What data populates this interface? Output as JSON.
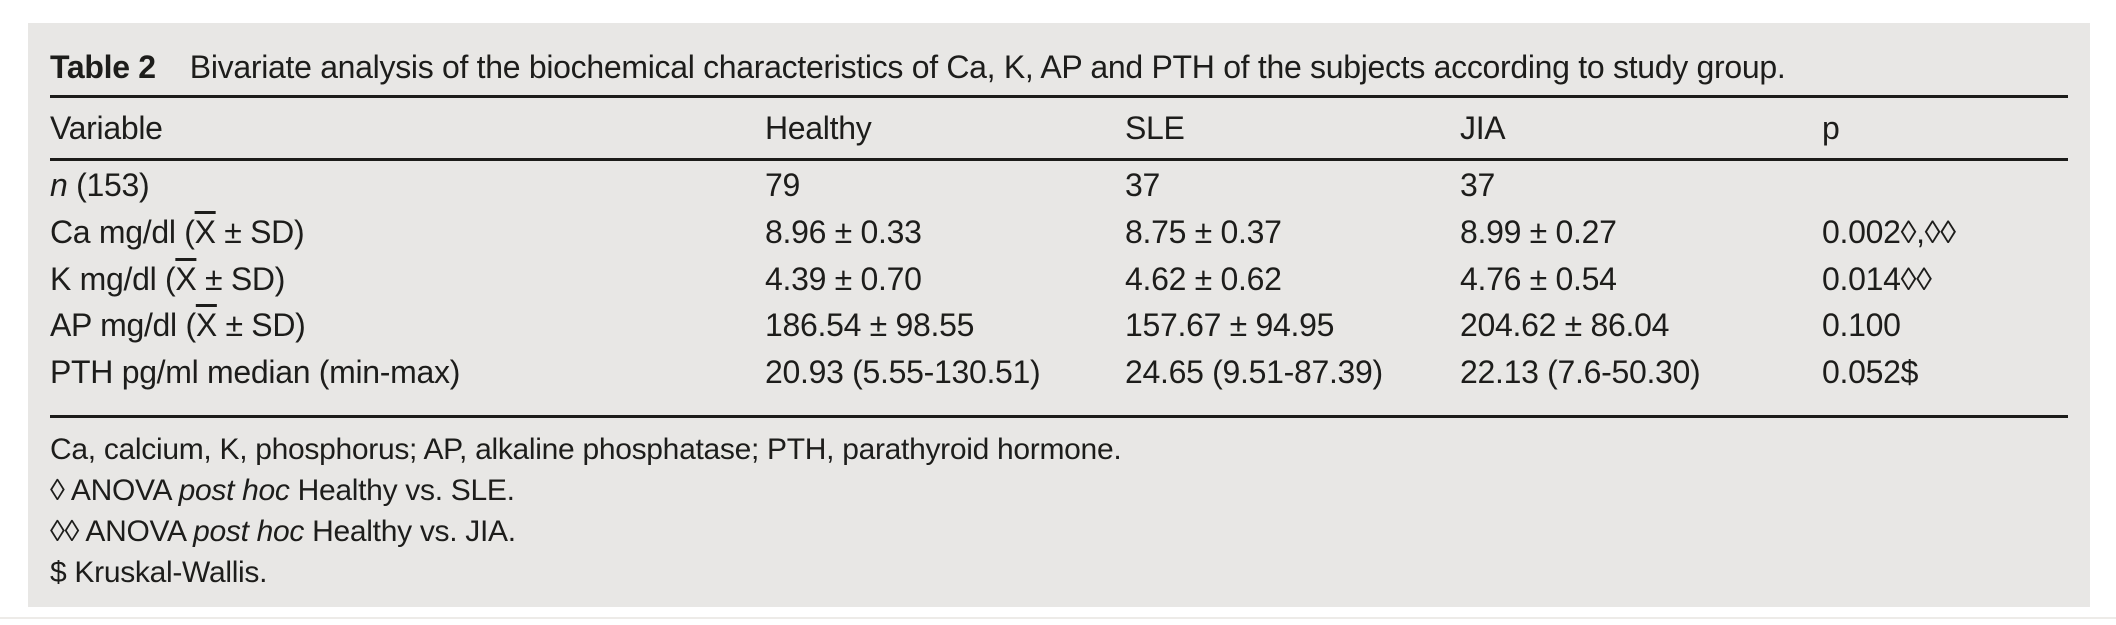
{
  "title": {
    "label": "Table 2",
    "text": "Bivariate analysis of the biochemical characteristics of Ca, K, AP and PTH of the subjects according to study group."
  },
  "columns": [
    "Variable",
    "Healthy",
    "SLE",
    "JIA",
    "p"
  ],
  "rows": [
    {
      "label_pre": "",
      "label_em": "n",
      "label_bar": "",
      "label_post": " (153)",
      "healthy": "79",
      "sle": "37",
      "jia": "37",
      "p": ""
    },
    {
      "label_pre": "Ca mg/dl (",
      "label_em": "",
      "label_bar": "X",
      "label_post": " ± SD)",
      "healthy": "8.96 ± 0.33",
      "sle": "8.75 ± 0.37",
      "jia": "8.99 ± 0.27",
      "p": "0.002◊,◊◊"
    },
    {
      "label_pre": "K mg/dl (",
      "label_em": "",
      "label_bar": "X",
      "label_post": " ± SD)",
      "healthy": "4.39 ± 0.70",
      "sle": "4.62 ± 0.62",
      "jia": "4.76 ± 0.54",
      "p": "0.014◊◊"
    },
    {
      "label_pre": "AP mg/dl (",
      "label_em": "",
      "label_bar": "X",
      "label_post": " ± SD)",
      "healthy": "186.54 ± 98.55",
      "sle": "157.67 ± 94.95",
      "jia": "204.62 ± 86.04",
      "p": "0.100"
    },
    {
      "label_pre": "PTH pg/ml median (min-max)",
      "label_em": "",
      "label_bar": "",
      "label_post": "",
      "healthy": "20.93 (5.55-130.51)",
      "sle": "24.65 (9.51-87.39)",
      "jia": "22.13 (7.6-50.30)",
      "p": "0.052$"
    }
  ],
  "footnotes": [
    {
      "pre": "Ca, calcium, K, phosphorus; AP, alkaline phosphatase; PTH, parathyroid hormone.",
      "em": "",
      "post": ""
    },
    {
      "pre": "◊ ANOVA ",
      "em": "post hoc",
      "post": " Healthy vs. SLE."
    },
    {
      "pre": "◊◊ ANOVA ",
      "em": "post hoc",
      "post": " Healthy vs. JIA."
    },
    {
      "pre": "$ Kruskal-Wallis.",
      "em": "",
      "post": ""
    }
  ],
  "colors": {
    "panel_background": "#e8e7e5",
    "text": "#1d1d1b",
    "rule": "#1c1c1a"
  }
}
